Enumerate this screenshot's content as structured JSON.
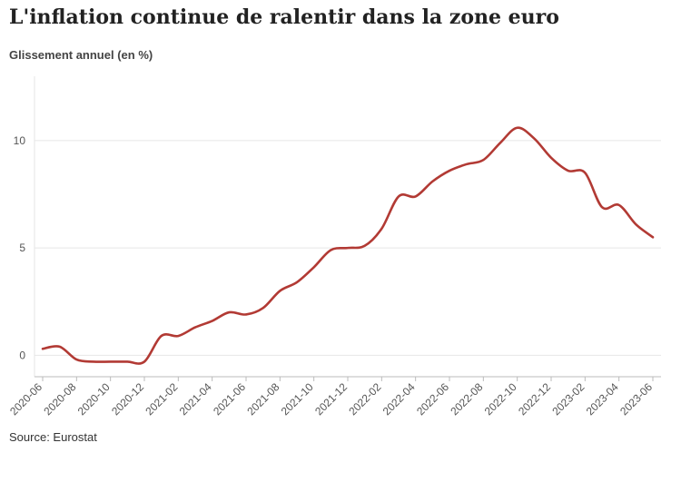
{
  "header": {
    "title": "L'inflation continue de ralentir dans la zone euro",
    "subtitle": "Glissement annuel (en %)"
  },
  "footer": {
    "source": "Source: Eurostat"
  },
  "colors": {
    "line": "#b23a34",
    "grid": "#e6e6e6",
    "axis": "#bbbbbb",
    "tick_text": "#555555"
  },
  "chart_data": {
    "type": "line",
    "title": "L'inflation continue de ralentir dans la zone euro",
    "subtitle": "Glissement annuel (en %)",
    "xlabel": "",
    "ylabel": "",
    "ylim": [
      -1,
      13
    ],
    "yticks": [
      0,
      5,
      10
    ],
    "xtick_labels": [
      "2020-06",
      "2020-08",
      "2020-10",
      "2020-12",
      "2021-02",
      "2021-04",
      "2021-06",
      "2021-08",
      "2021-10",
      "2021-12",
      "2022-02",
      "2022-04",
      "2022-06",
      "2022-08",
      "2022-10",
      "2022-12",
      "2023-02",
      "2023-04",
      "2023-06"
    ],
    "grid": true,
    "legend": "none",
    "series": [
      {
        "x": [
          "2020-06",
          "2020-07",
          "2020-08",
          "2020-09",
          "2020-10",
          "2020-11",
          "2020-12",
          "2021-01",
          "2021-02",
          "2021-03",
          "2021-04",
          "2021-05",
          "2021-06",
          "2021-07",
          "2021-08",
          "2021-09",
          "2021-10",
          "2021-11",
          "2021-12",
          "2022-01",
          "2022-02",
          "2022-03",
          "2022-04",
          "2022-05",
          "2022-06",
          "2022-07",
          "2022-08",
          "2022-09",
          "2022-10",
          "2022-11",
          "2022-12",
          "2023-01",
          "2023-02",
          "2023-03",
          "2023-04",
          "2023-05",
          "2023-06"
        ],
        "values": [
          0.3,
          0.4,
          -0.2,
          -0.3,
          -0.3,
          -0.3,
          -0.3,
          0.9,
          0.9,
          1.3,
          1.6,
          2.0,
          1.9,
          2.2,
          3.0,
          3.4,
          4.1,
          4.9,
          5.0,
          5.1,
          5.9,
          7.4,
          7.4,
          8.1,
          8.6,
          8.9,
          9.1,
          9.9,
          10.6,
          10.1,
          9.2,
          8.6,
          8.5,
          6.9,
          7.0,
          6.1,
          5.5
        ]
      }
    ],
    "source": "Source: Eurostat"
  }
}
